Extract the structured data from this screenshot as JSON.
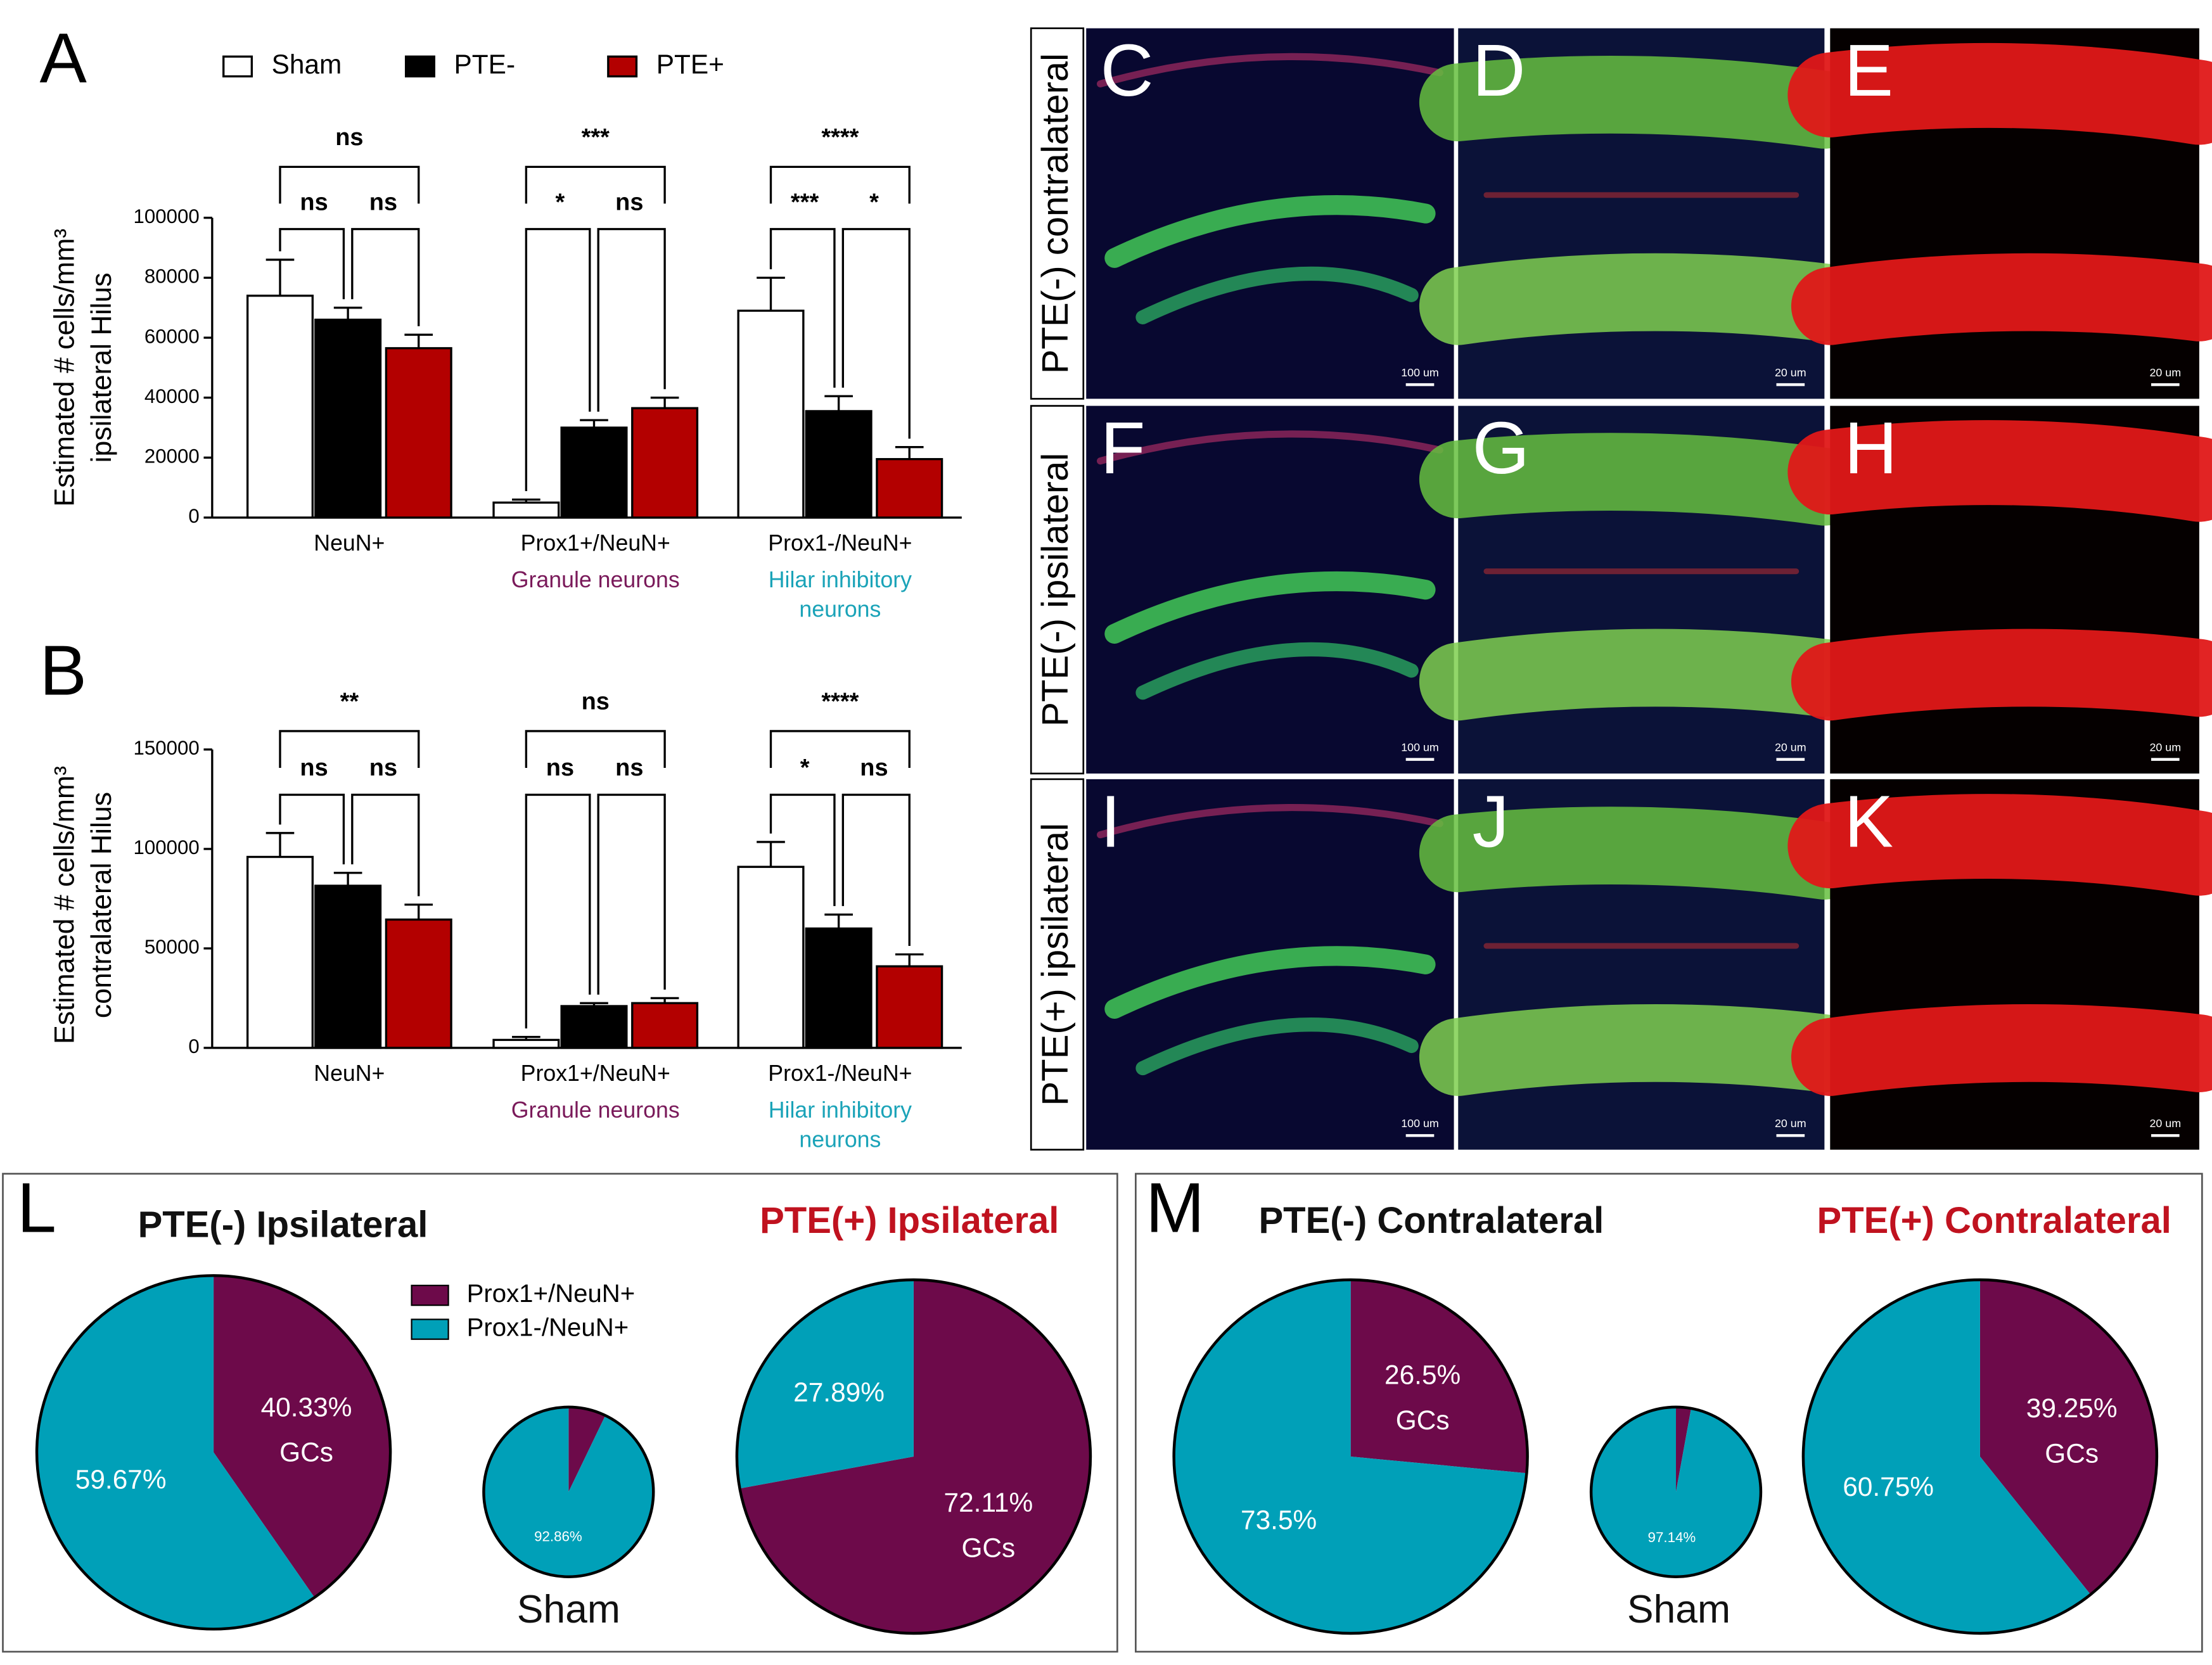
{
  "chart_data": [
    {
      "type": "bar",
      "panel": "A",
      "legend": "top",
      "ylabel": [
        "Estimated # cells/mm³",
        "ipsilateral Hilus"
      ],
      "categories": [
        "NeuN+",
        "Prox1+/NeuN+",
        "Prox1-/NeuN+"
      ],
      "category_notes": [
        null,
        [
          "Granule neurons"
        ],
        [
          "Hilar inhibitory",
          "neurons"
        ]
      ],
      "category_note_colors": [
        null,
        "#7a1a5a",
        "#1aa3b8"
      ],
      "series": [
        {
          "name": "Sham",
          "color": "#ffffff",
          "values": [
            74000,
            5000,
            69000
          ],
          "errors": [
            12000,
            1000,
            11000
          ]
        },
        {
          "name": "PTE-",
          "color": "#000000",
          "values": [
            66000,
            30000,
            35500
          ],
          "errors": [
            4000,
            2500,
            5000
          ]
        },
        {
          "name": "PTE+",
          "color": "#b30000",
          "values": [
            56500,
            36500,
            19500
          ],
          "errors": [
            4500,
            3500,
            4000
          ]
        }
      ],
      "significance": [
        [
          "ns",
          "ns",
          "ns"
        ],
        [
          "***",
          "*",
          "ns"
        ],
        [
          "****",
          "***",
          "*"
        ]
      ],
      "ylim": [
        0,
        100000
      ],
      "yticks": [
        0,
        20000,
        40000,
        60000,
        80000,
        100000
      ],
      "grid": false
    },
    {
      "type": "bar",
      "panel": "B",
      "ylabel": [
        "Estimated # cells/mm³",
        "contralateral Hilus"
      ],
      "categories": [
        "NeuN+",
        "Prox1+/NeuN+",
        "Prox1-/NeuN+"
      ],
      "category_notes": [
        null,
        [
          "Granule neurons"
        ],
        [
          "Hilar inhibitory",
          "neurons"
        ]
      ],
      "category_note_colors": [
        null,
        "#7a1a5a",
        "#1aa3b8"
      ],
      "series": [
        {
          "color": "#ffffff",
          "values": [
            96000,
            4000,
            91000
          ],
          "errors": [
            12000,
            1500,
            12500
          ]
        },
        {
          "color": "#000000",
          "values": [
            81500,
            21000,
            60000
          ],
          "errors": [
            6500,
            1500,
            7000
          ]
        },
        {
          "color": "#b30000",
          "values": [
            64500,
            22500,
            41000
          ],
          "errors": [
            7500,
            2500,
            6000
          ]
        }
      ],
      "significance": [
        [
          "**",
          "ns",
          "ns"
        ],
        [
          "ns",
          "ns",
          "ns"
        ],
        [
          "****",
          "*",
          "ns"
        ]
      ],
      "ylim": [
        0,
        150000
      ],
      "yticks": [
        0,
        50000,
        100000,
        150000
      ],
      "grid": false
    },
    {
      "type": "pie",
      "panel": "L",
      "legend": "center",
      "labels": [
        "Prox1+/NeuN+",
        "Prox1-/NeuN+"
      ],
      "colors": [
        "#6d0a4a",
        "#00a0b8"
      ],
      "pies": [
        {
          "title": "PTE(-) Ipsilateral",
          "title_color": "#111111",
          "values": [
            40.33,
            59.67
          ],
          "value_labels": [
            "40.33%",
            "59.67%"
          ],
          "note": "GCs"
        },
        {
          "title": "Sham",
          "title_color": "#111111",
          "values": [
            7.14,
            92.86
          ],
          "value_labels": [
            null,
            "92.86%"
          ],
          "note": null
        },
        {
          "title": "PTE(+) Ipsilateral",
          "title_color": "#c0121f",
          "values": [
            72.11,
            27.89
          ],
          "value_labels": [
            "72.11%",
            "27.89%"
          ],
          "note": "GCs"
        }
      ]
    },
    {
      "type": "pie",
      "panel": "M",
      "colors": [
        "#6d0a4a",
        "#00a0b8"
      ],
      "pies": [
        {
          "title": "PTE(-) Contralateral",
          "title_color": "#111111",
          "values": [
            26.5,
            73.5
          ],
          "value_labels": [
            "26.5%",
            "73.5%"
          ],
          "note": "GCs"
        },
        {
          "title": "Sham",
          "title_color": "#111111",
          "values": [
            2.86,
            97.14
          ],
          "value_labels": [
            null,
            "97.14%"
          ],
          "note": null
        },
        {
          "title": "PTE(+) Contralateral",
          "title_color": "#c0121f",
          "values": [
            39.25,
            60.75
          ],
          "value_labels": [
            "39.25%",
            "60.75%"
          ],
          "note": "GCs"
        }
      ]
    }
  ],
  "images": {
    "rows": [
      {
        "label": "PTE(-) contralateral",
        "panels": [
          {
            "letter": "C",
            "scale": "100 um"
          },
          {
            "letter": "D",
            "scale": "20 um"
          },
          {
            "letter": "E",
            "scale": "20 um"
          }
        ]
      },
      {
        "label": "PTE(-) ipsilateral",
        "panels": [
          {
            "letter": "F",
            "scale": "100 um"
          },
          {
            "letter": "G",
            "scale": "20 um"
          },
          {
            "letter": "H",
            "scale": "20 um"
          }
        ]
      },
      {
        "label": "PTE(+) ipsilateral",
        "panels": [
          {
            "letter": "I",
            "scale": "100 um"
          },
          {
            "letter": "J",
            "scale": "20 um"
          },
          {
            "letter": "K",
            "scale": "20 um"
          }
        ]
      }
    ]
  }
}
